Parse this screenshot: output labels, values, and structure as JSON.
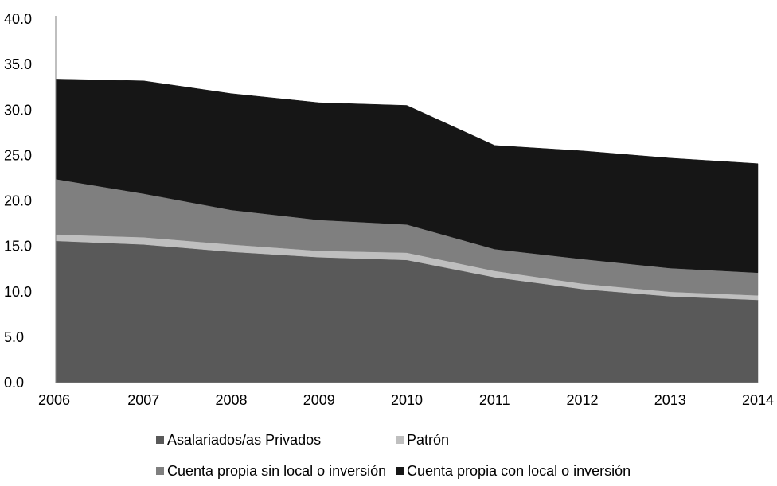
{
  "chart_data": {
    "type": "area",
    "stacked": true,
    "x": [
      "2006",
      "2007",
      "2008",
      "2009",
      "2010",
      "2011",
      "2012",
      "2013",
      "2014"
    ],
    "ylim": [
      0,
      40
    ],
    "yticks": [
      "0.0",
      "5.0",
      "10.0",
      "15.0",
      "20.0",
      "25.0",
      "30.0",
      "35.0",
      "40.0"
    ],
    "grid": false,
    "legend_position": "bottom",
    "series": [
      {
        "name": "Asalariados/as  Privados",
        "color": "#595959",
        "values": [
          15.6,
          15.2,
          14.4,
          13.8,
          13.5,
          11.6,
          10.3,
          9.5,
          9.1
        ]
      },
      {
        "name": "Patrón",
        "color": "#bfbfbf",
        "values": [
          0.7,
          0.8,
          0.8,
          0.7,
          0.8,
          0.7,
          0.6,
          0.5,
          0.5
        ]
      },
      {
        "name": "Cuenta propia sin local o inversión",
        "color": "#7f7f7f",
        "values": [
          6.1,
          4.8,
          3.8,
          3.4,
          3.1,
          2.4,
          2.7,
          2.6,
          2.5
        ]
      },
      {
        "name": "Cuenta propia con local o inversión",
        "color": "#161616",
        "values": [
          11.0,
          12.4,
          12.8,
          12.9,
          13.1,
          11.4,
          11.9,
          12.1,
          12.0
        ]
      }
    ]
  }
}
